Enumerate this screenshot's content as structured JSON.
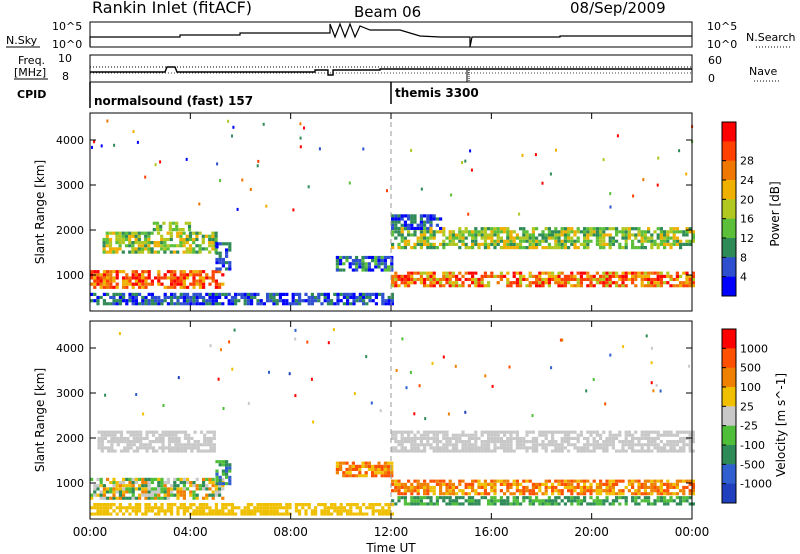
{
  "header": {
    "station": "Rankin Inlet (fitACF)",
    "beam": "Beam 06",
    "date": "08/Sep/2009"
  },
  "strip": {
    "nsky_label": "N.Sky",
    "nsky_top": "10^5",
    "nsky_bottom": "10^0",
    "nsearch_label": "N.Search",
    "nsearch_top": "10^5",
    "nsearch_bottom": "10^0",
    "freq_label_1": "Freq.",
    "freq_label_2": "[MHz]",
    "freq_top": "10",
    "freq_bottom": "8",
    "nave_label": "Nave",
    "nave_top": "60",
    "nave_bottom": "0",
    "cpid_label": "CPID",
    "cpid_1": "normalsound (fast) 157",
    "cpid_2": "themis 3300"
  },
  "chart_data": [
    {
      "type": "heatmap",
      "name": "power",
      "ylabel": "Slant Range [km]",
      "xlabel": "",
      "xticks": [
        "00:00",
        "04:00",
        "08:00",
        "12:00",
        "16:00",
        "20:00",
        "00:00"
      ],
      "yticks": [
        "1000",
        "2000",
        "3000",
        "4000"
      ],
      "ylim": [
        200,
        4600
      ],
      "colorbar_label": "Power [dB]",
      "colorbar_ticks": [
        "4",
        "8",
        "12",
        "16",
        "20",
        "24",
        "28"
      ],
      "colors": [
        "#0000ff",
        "#2e4fd0",
        "#2e8b57",
        "#5cbf3a",
        "#b0c820",
        "#f0b000",
        "#f07800",
        "#ff4000",
        "#ff0000"
      ]
    },
    {
      "type": "heatmap",
      "name": "velocity",
      "ylabel": "Slant Range [km]",
      "xlabel": "Time UT",
      "xticks": [
        "00:00",
        "04:00",
        "08:00",
        "12:00",
        "16:00",
        "20:00",
        "00:00"
      ],
      "yticks": [
        "1000",
        "2000",
        "3000",
        "4000"
      ],
      "ylim": [
        200,
        4600
      ],
      "colorbar_label": "Velocity [m s^-1]",
      "colorbar_ticks": [
        "1000",
        "500",
        "100",
        "25",
        "-25",
        "-100",
        "-500",
        "-1000"
      ],
      "colors": [
        "#1f3fbf",
        "#3060d0",
        "#2e8b57",
        "#4fbf3a",
        "#c8c8c8",
        "#f0c000",
        "#f08000",
        "#ff5000",
        "#ff0000"
      ]
    }
  ]
}
